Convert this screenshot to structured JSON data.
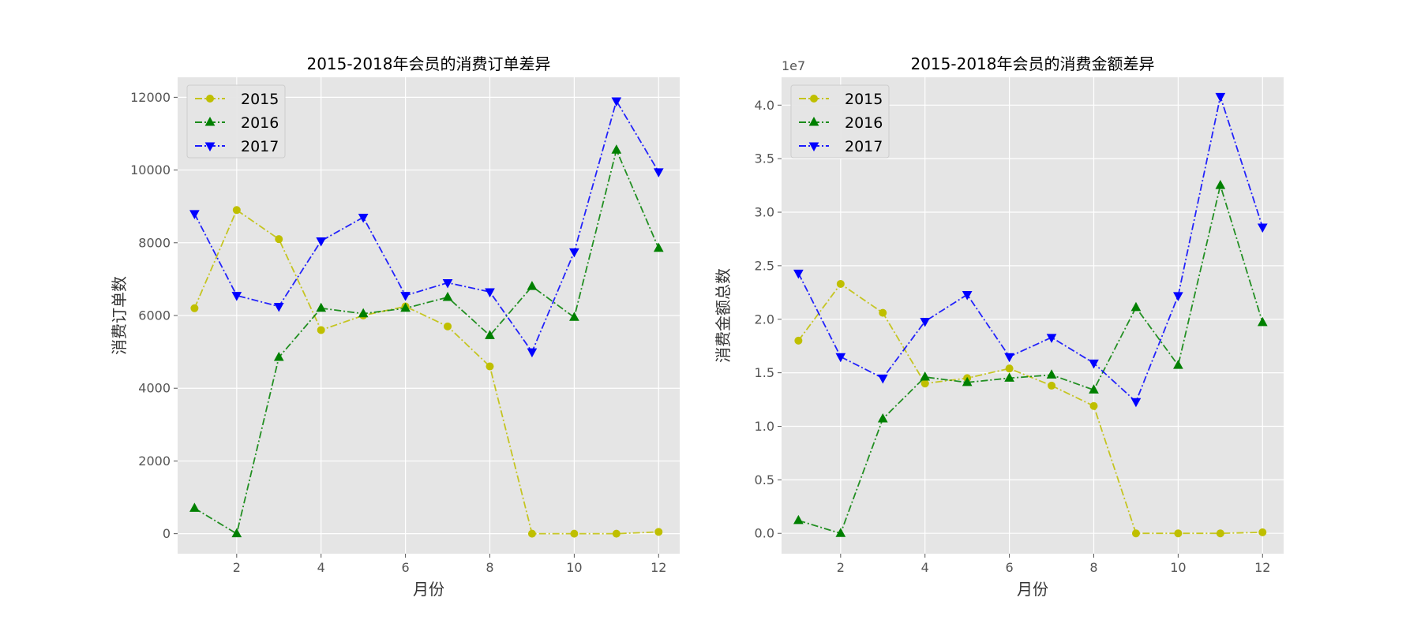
{
  "chart_data": [
    {
      "type": "line",
      "title": "2015-2018年会员的消费订单差异",
      "xlabel": "月份",
      "ylabel": "消费订单数",
      "x": [
        1,
        2,
        3,
        4,
        5,
        6,
        7,
        8,
        9,
        10,
        11,
        12
      ],
      "xlim": [
        0.6,
        12.5
      ],
      "ylim": [
        -550,
        12550
      ],
      "xticks": [
        2,
        4,
        6,
        8,
        10,
        12
      ],
      "yticks": [
        0,
        2000,
        4000,
        6000,
        8000,
        10000,
        12000
      ],
      "ytick_labels": [
        "0",
        "2000",
        "4000",
        "6000",
        "8000",
        "10000",
        "12000"
      ],
      "offset_text": "",
      "grid": true,
      "legend_position": "upper-left",
      "series": [
        {
          "name": "2015",
          "color": "#bfbf00",
          "marker": "circle",
          "linestyle": "dashdot",
          "values": [
            6200,
            8900,
            8100,
            5600,
            6000,
            6250,
            5700,
            4600,
            0,
            0,
            0,
            50
          ]
        },
        {
          "name": "2016",
          "color": "#008000",
          "marker": "triangle-up",
          "linestyle": "dashdot",
          "values": [
            700,
            0,
            4850,
            6200,
            6050,
            6200,
            6500,
            5450,
            6800,
            5950,
            10550,
            7850
          ]
        },
        {
          "name": "2017",
          "color": "#0000ff",
          "marker": "triangle-down",
          "linestyle": "dashdot",
          "values": [
            8800,
            6550,
            6250,
            8050,
            8700,
            6550,
            6900,
            6650,
            5000,
            7750,
            11900,
            9950
          ]
        }
      ]
    },
    {
      "type": "line",
      "title": "2015-2018年会员的消费金额差异",
      "xlabel": "月份",
      "ylabel": "消费金额总数",
      "x": [
        1,
        2,
        3,
        4,
        5,
        6,
        7,
        8,
        9,
        10,
        11,
        12
      ],
      "xlim": [
        0.6,
        12.5
      ],
      "ylim": [
        -0.19,
        4.26
      ],
      "xticks": [
        2,
        4,
        6,
        8,
        10,
        12
      ],
      "yticks": [
        0,
        0.5,
        1,
        1.5,
        2,
        2.5,
        3,
        3.5,
        4
      ],
      "ytick_labels": [
        "0.0",
        "0.5",
        "1.0",
        "1.5",
        "2.0",
        "2.5",
        "3.0",
        "3.5",
        "4.0"
      ],
      "offset_text": "1e7",
      "grid": true,
      "legend_position": "upper-left",
      "series": [
        {
          "name": "2015",
          "color": "#bfbf00",
          "marker": "circle",
          "linestyle": "dashdot",
          "values": [
            1.8,
            2.33,
            2.06,
            1.4,
            1.45,
            1.54,
            1.38,
            1.19,
            0.0,
            0.0,
            0.0,
            0.01
          ]
        },
        {
          "name": "2016",
          "color": "#008000",
          "marker": "triangle-up",
          "linestyle": "dashdot",
          "values": [
            0.12,
            0.0,
            1.07,
            1.46,
            1.41,
            1.45,
            1.48,
            1.34,
            2.11,
            1.57,
            3.25,
            1.97
          ]
        },
        {
          "name": "2017",
          "color": "#0000ff",
          "marker": "triangle-down",
          "linestyle": "dashdot",
          "values": [
            2.43,
            1.65,
            1.45,
            1.98,
            2.23,
            1.65,
            1.83,
            1.59,
            1.23,
            2.22,
            4.08,
            2.86
          ]
        }
      ]
    }
  ]
}
